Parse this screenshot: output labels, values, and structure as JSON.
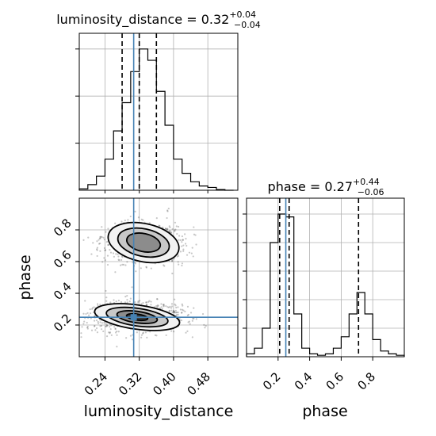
{
  "chart_data": {
    "type": "corner",
    "truth": {
      "luminosity_distance": 0.307,
      "phase": 0.249
    },
    "titles": {
      "luminosity_distance": {
        "name": "luminosity_distance",
        "value": "0.32",
        "plus": "+0.04",
        "minus": "−0.04"
      },
      "phase": {
        "name": "phase",
        "value": "0.27",
        "plus": "+0.44",
        "minus": "−0.06"
      }
    },
    "quantiles": {
      "luminosity_distance": [
        0.28,
        0.32,
        0.36
      ],
      "phase": [
        0.21,
        0.27,
        0.71
      ]
    },
    "axes": {
      "luminosity_distance": {
        "label": "luminosity_distance",
        "range": [
          0.18,
          0.55
        ],
        "ticks": [
          0.24,
          0.32,
          0.4,
          0.48
        ],
        "tick_labels": [
          "0.24",
          "0.32",
          "0.40",
          "0.48"
        ]
      },
      "phase": {
        "label": "phase",
        "range": [
          0.0,
          1.0
        ],
        "ticks": [
          0.2,
          0.4,
          0.6,
          0.8
        ],
        "tick_labels": [
          "0.2",
          "0.4",
          "0.6",
          "0.8"
        ],
        "y_ticks": [
          0.2,
          0.4,
          0.6,
          0.8
        ],
        "y_tick_labels": [
          "0.2",
          "0.4",
          "0.6",
          "0.8"
        ],
        "y_label": "phase"
      }
    },
    "hist_luminosity_distance": {
      "edges": [
        0.18,
        0.2,
        0.22,
        0.24,
        0.26,
        0.28,
        0.3,
        0.32,
        0.34,
        0.36,
        0.38,
        0.4,
        0.42,
        0.44,
        0.46,
        0.48,
        0.5,
        0.52,
        0.54
      ],
      "counts": [
        0.01,
        0.04,
        0.1,
        0.22,
        0.42,
        0.62,
        0.84,
        1.0,
        0.92,
        0.7,
        0.46,
        0.22,
        0.12,
        0.06,
        0.03,
        0.02,
        0.005,
        0.0
      ]
    },
    "hist_phase": {
      "edges": [
        0.0,
        0.05,
        0.1,
        0.15,
        0.2,
        0.25,
        0.3,
        0.35,
        0.4,
        0.45,
        0.5,
        0.55,
        0.6,
        0.65,
        0.7,
        0.75,
        0.8,
        0.85,
        0.9,
        0.95,
        1.0
      ],
      "counts": [
        0.02,
        0.06,
        0.2,
        0.8,
        1.0,
        0.98,
        0.3,
        0.06,
        0.02,
        0.01,
        0.02,
        0.06,
        0.14,
        0.3,
        0.45,
        0.3,
        0.12,
        0.04,
        0.02,
        0.01
      ]
    },
    "density_2d": {
      "clusters": [
        {
          "x": 0.315,
          "y": 0.25,
          "sx": 0.05,
          "sy": 0.045,
          "weight": 0.55
        },
        {
          "x": 0.33,
          "y": 0.72,
          "sx": 0.042,
          "sy": 0.06,
          "weight": 0.45
        }
      ],
      "contour_levels": [
        0.4,
        0.9,
        1.4,
        1.9
      ]
    },
    "grid": true
  }
}
